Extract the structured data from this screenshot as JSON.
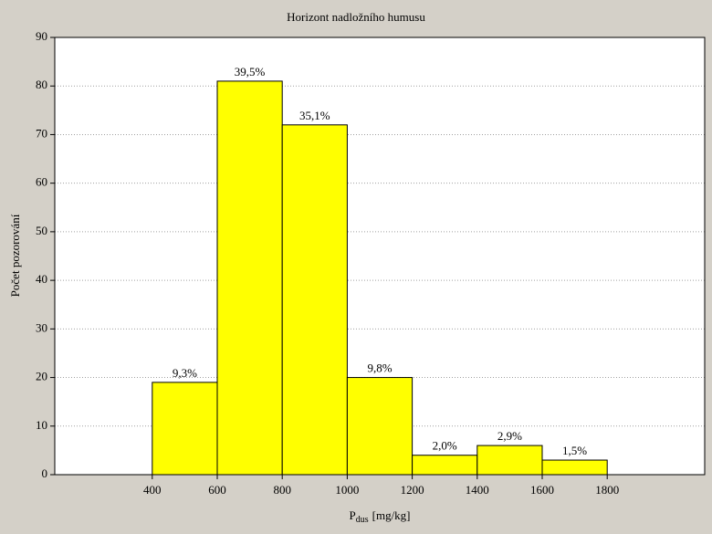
{
  "chart_data": {
    "type": "histogram",
    "title": "Horizont nadložního humusu",
    "x_label": {
      "symbol": "P",
      "subscript": "dus",
      "unit": "[mg/kg]"
    },
    "y_label": "Počet pozorování",
    "bins": [
      400,
      600,
      800,
      1000,
      1200,
      1400,
      1600,
      1800
    ],
    "values": [
      19,
      81,
      72,
      20,
      4,
      6,
      3
    ],
    "bar_labels": [
      "9,3%",
      "39,5%",
      "35,1%",
      "9,8%",
      "2,0%",
      "2,9%",
      "1,5%"
    ],
    "color": "#ffff00",
    "xlim": [
      100,
      2100
    ],
    "xticks": [
      400,
      600,
      800,
      1000,
      1200,
      1400,
      1600,
      1800
    ],
    "ylim": [
      0,
      90
    ],
    "yticks": [
      0,
      10,
      20,
      30,
      40,
      50,
      60,
      70,
      80,
      90
    ],
    "grid": true
  }
}
